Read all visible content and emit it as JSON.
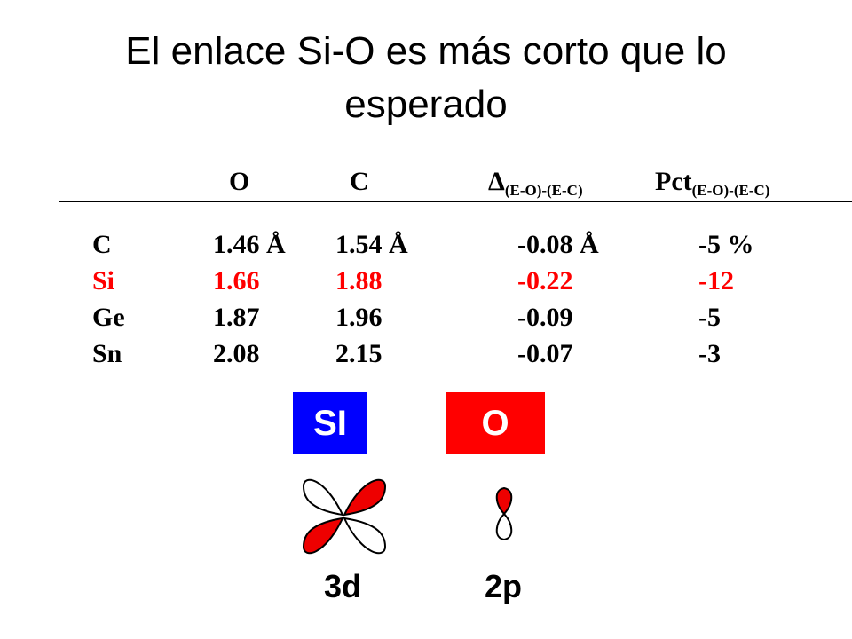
{
  "title_line1": "El enlace Si-O es más corto que lo",
  "title_line2": "esperado",
  "table": {
    "headers": {
      "o": "O",
      "c": "C",
      "delta_symbol": "Δ",
      "delta_sub": "(E-O)-(E-C)",
      "pct": "Pct",
      "pct_sub": "(E-O)-(E-C)"
    },
    "rows": [
      {
        "element": "C",
        "o": "1.46 Å",
        "c": "1.54 Å",
        "delta": "-0.08 Å",
        "pct": "-5 %",
        "highlight": false
      },
      {
        "element": "Si",
        "o": "1.66",
        "c": "1.88",
        "delta": "-0.22",
        "pct": "-12",
        "highlight": true
      },
      {
        "element": "Ge",
        "o": "1.87",
        "c": "1.96",
        "delta": "-0.09",
        "pct": "-5",
        "highlight": false
      },
      {
        "element": "Sn",
        "o": "2.08",
        "c": "2.15",
        "delta": "-0.07",
        "pct": "-3",
        "highlight": false
      }
    ]
  },
  "boxes": {
    "si": {
      "label": "SI",
      "color": "#0000ff"
    },
    "o": {
      "label": "O",
      "color": "#ff0000"
    }
  },
  "orbitals": {
    "d_label": "3d",
    "p_label": "2p",
    "fill_color": "#ee0000"
  }
}
